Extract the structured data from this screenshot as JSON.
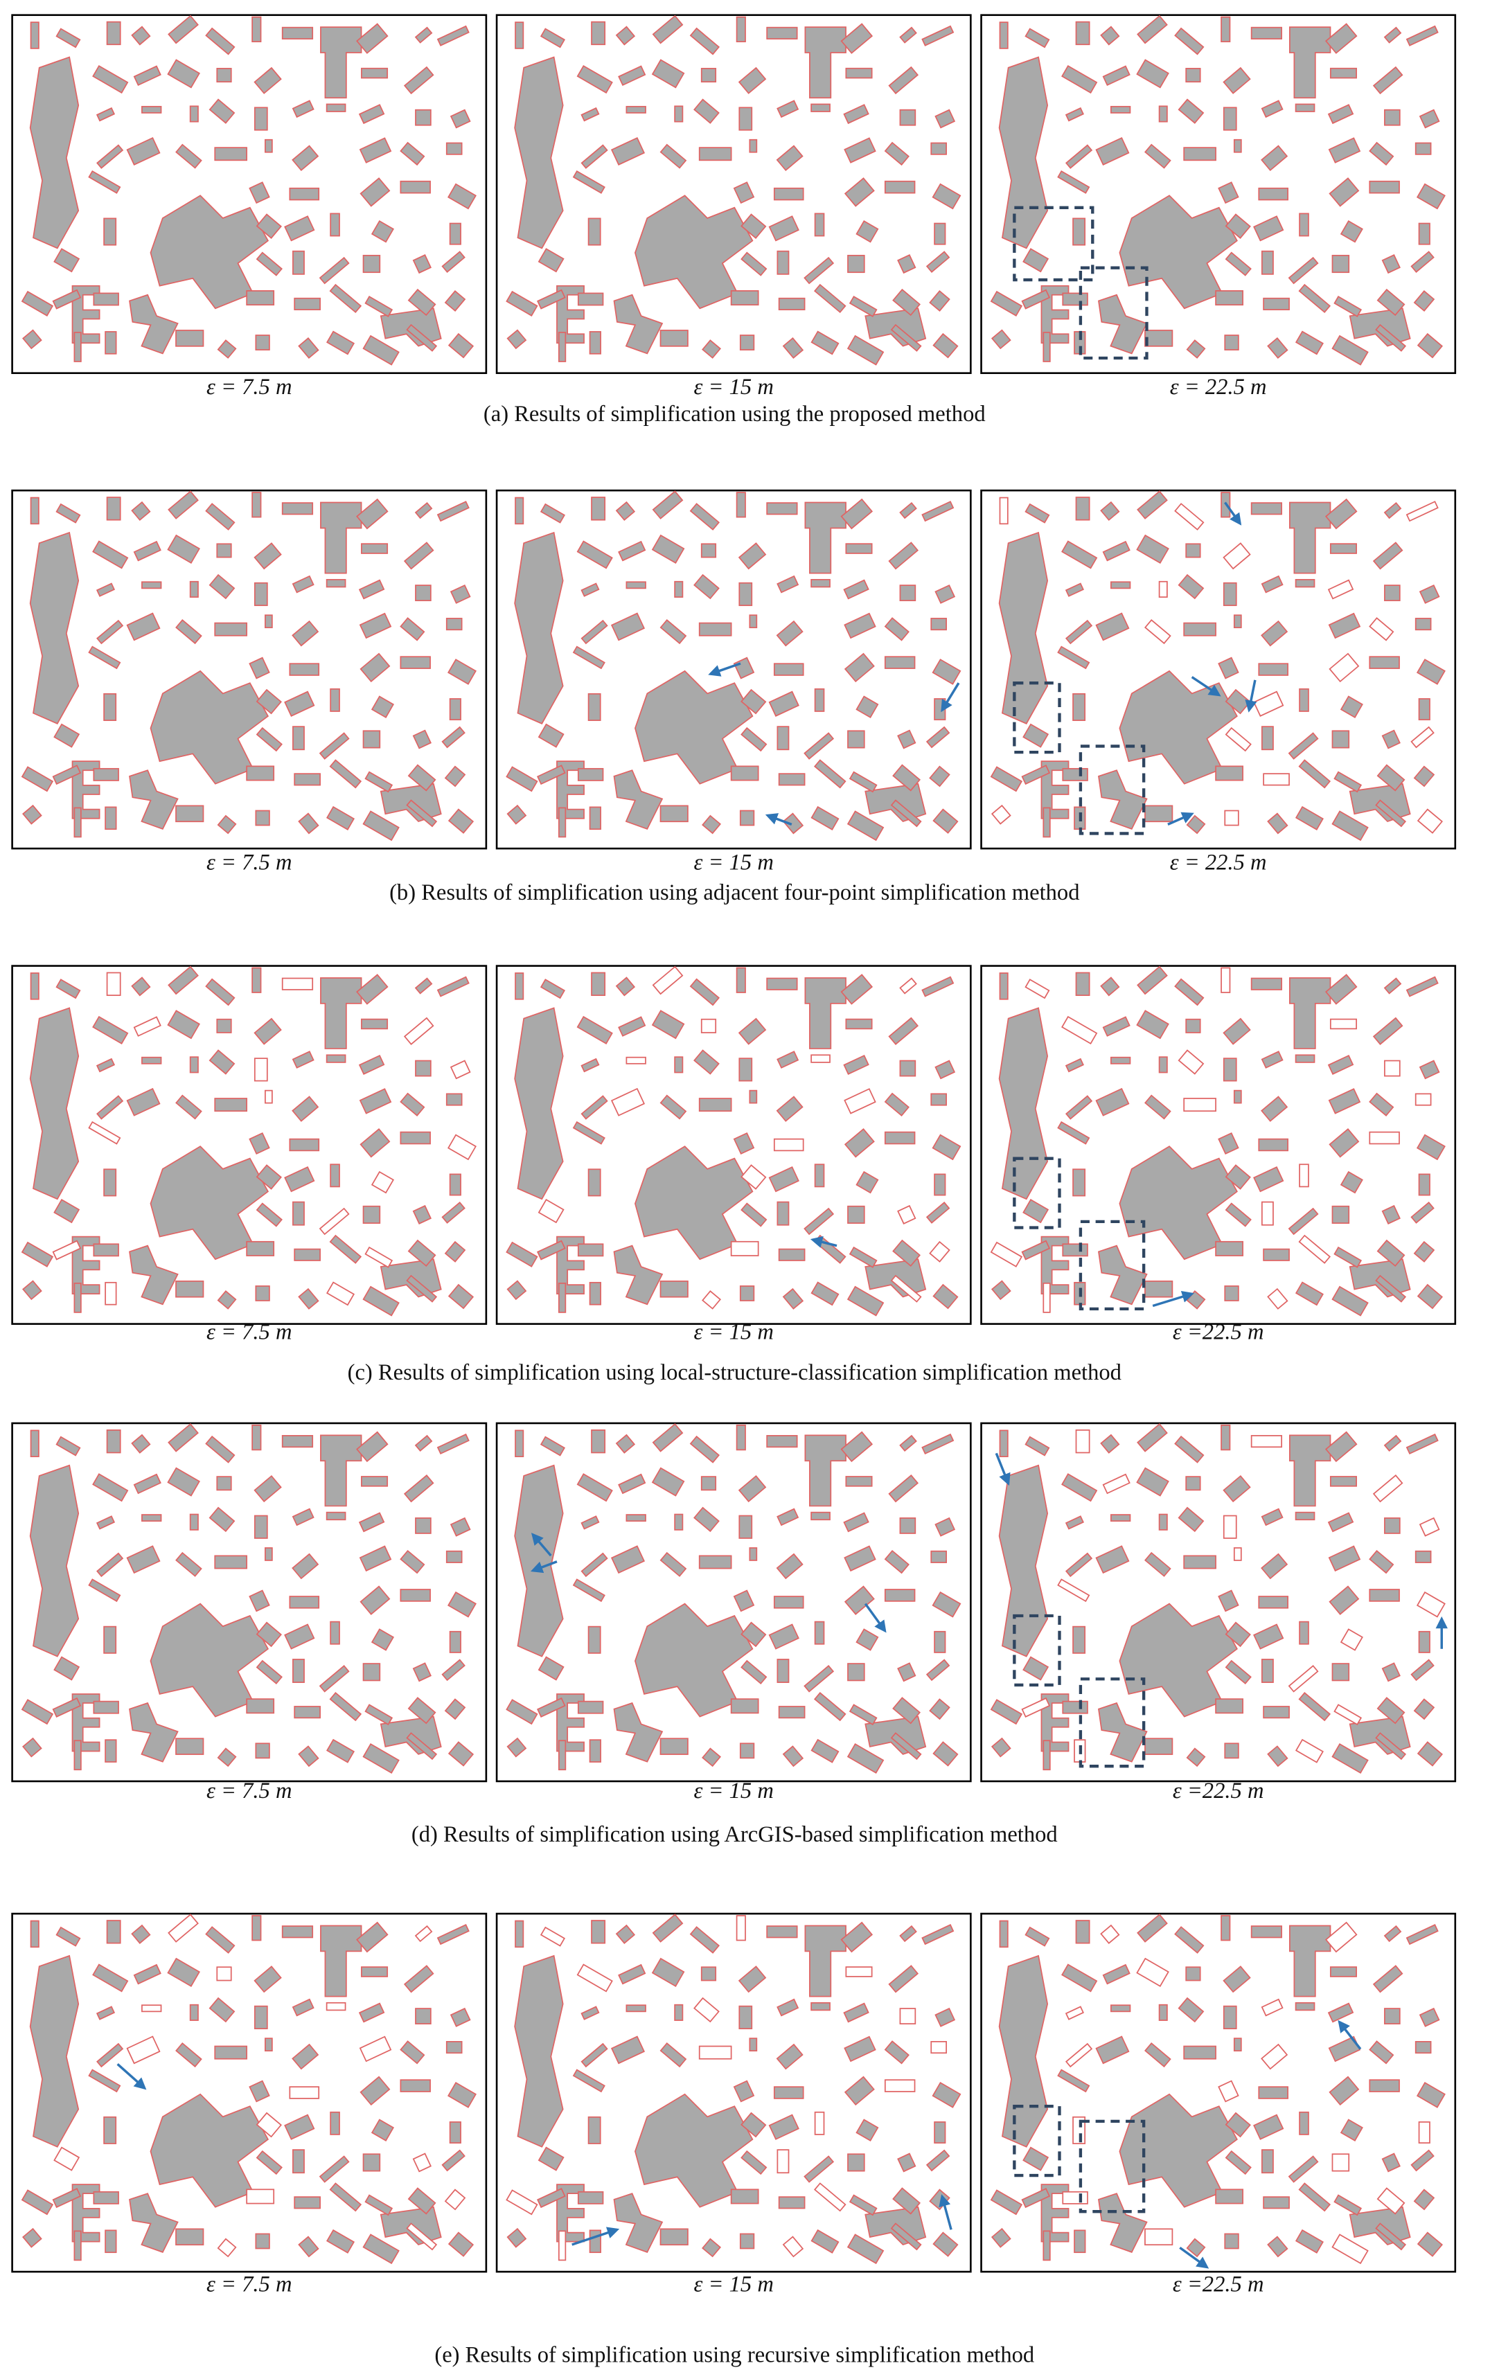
{
  "figure": {
    "rows": [
      {
        "caption": "(a) Results of simplification using the proposed method",
        "panels": [
          {
            "label": "ε = 7.5 m"
          },
          {
            "label": "ε = 15 m"
          },
          {
            "label": "ε = 22.5 m"
          }
        ]
      },
      {
        "caption": "(b) Results of simplification using adjacent four-point simplification method",
        "panels": [
          {
            "label": "ε = 7.5 m"
          },
          {
            "label": "ε = 15 m"
          },
          {
            "label": "ε = 22.5 m"
          }
        ]
      },
      {
        "caption": "(c) Results of simplification using local-structure-classification simplification method",
        "panels": [
          {
            "label": "ε = 7.5 m"
          },
          {
            "label": "ε = 15 m"
          },
          {
            "label": "ε =22.5 m"
          }
        ]
      },
      {
        "caption": "(d) Results of simplification using ArcGIS-based simplification method",
        "panels": [
          {
            "label": "ε = 7.5 m"
          },
          {
            "label": "ε = 15 m"
          },
          {
            "label": "ε =22.5 m"
          }
        ]
      },
      {
        "caption": "(e) Results of simplification using recursive simplification method",
        "panels": [
          {
            "label": "ε = 7.5 m"
          },
          {
            "label": "ε = 15 m"
          },
          {
            "label": "ε =22.5 m"
          }
        ]
      }
    ]
  }
}
